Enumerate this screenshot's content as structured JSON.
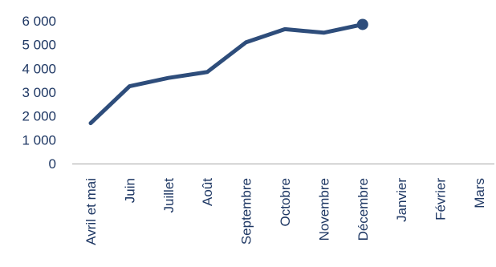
{
  "chart_data": {
    "type": "line",
    "categories": [
      "Avril et mai",
      "Juin",
      "Juillet",
      "Août",
      "Septembre",
      "Octobre",
      "Novembre",
      "Décembre",
      "Janvier",
      "Février",
      "Mars"
    ],
    "series": [
      {
        "values": [
          1700,
          3250,
          3600,
          3850,
          5100,
          5650,
          5500,
          5850,
          null,
          null,
          null
        ]
      }
    ],
    "y_ticks": [
      "0",
      "1 000",
      "2 000",
      "3 000",
      "4 000",
      "5 000",
      "6 000"
    ],
    "ylim": [
      0,
      6000
    ],
    "grid": false,
    "legend": "none",
    "colors": {
      "line": "#2e4d7b",
      "text": "#1f3864",
      "axis": "#a6a6a6"
    }
  }
}
